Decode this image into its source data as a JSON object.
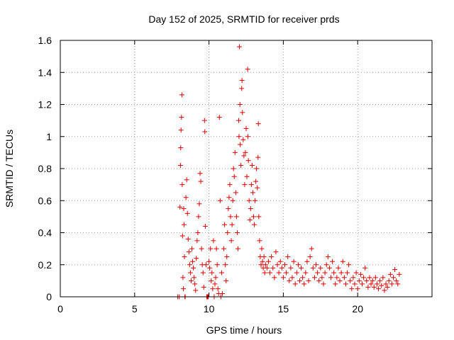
{
  "chart_data": {
    "type": "scatter",
    "title": "Day 152 of 2025, SRMTID for receiver prds",
    "xlabel": "GPS time / hours",
    "ylabel": "SRMTID / TECUs",
    "xlim": [
      0,
      25
    ],
    "ylim": [
      0,
      1.6
    ],
    "xticks": [
      "0",
      "5",
      "10",
      "15",
      "20"
    ],
    "yticks": [
      "0",
      "0.2",
      "0.4",
      "0.6",
      "0.8",
      "1",
      "1.2",
      "1.4",
      "1.6"
    ],
    "grid": true,
    "marker": "plus",
    "colors": {
      "series": "#e00000",
      "grid": "#a0a0a0",
      "axes": "#000000"
    },
    "series": [
      {
        "name": "SRMTID",
        "points": [
          [
            7.9,
            0.0
          ],
          [
            8.0,
            0.0
          ],
          [
            8.05,
            0.56
          ],
          [
            8.08,
            0.82
          ],
          [
            8.1,
            0.93
          ],
          [
            8.12,
            1.04
          ],
          [
            8.15,
            1.12
          ],
          [
            8.18,
            1.26
          ],
          [
            8.2,
            0.7
          ],
          [
            8.22,
            0.38
          ],
          [
            8.25,
            0.12
          ],
          [
            8.28,
            0.05
          ],
          [
            8.3,
            0.55
          ],
          [
            8.32,
            0.45
          ],
          [
            8.35,
            0.25
          ],
          [
            8.38,
            0.0
          ],
          [
            8.4,
            0.0
          ],
          [
            8.45,
            0.62
          ],
          [
            8.5,
            0.73
          ],
          [
            8.55,
            0.52
          ],
          [
            8.6,
            0.36
          ],
          [
            8.65,
            0.28
          ],
          [
            8.7,
            0.2
          ],
          [
            8.75,
            0.15
          ],
          [
            8.8,
            0.1
          ],
          [
            8.85,
            0.3
          ],
          [
            8.9,
            0.22
          ],
          [
            8.95,
            0.18
          ],
          [
            9.0,
            0.12
          ],
          [
            9.05,
            0.08
          ],
          [
            9.1,
            0.04
          ],
          [
            9.15,
            0.24
          ],
          [
            9.2,
            0.35
          ],
          [
            9.25,
            0.4
          ],
          [
            9.3,
            0.5
          ],
          [
            9.35,
            0.58
          ],
          [
            9.4,
            0.77
          ],
          [
            9.45,
            0.72
          ],
          [
            9.5,
            0.3
          ],
          [
            9.55,
            0.2
          ],
          [
            9.6,
            0.15
          ],
          [
            9.65,
            0.06
          ],
          [
            9.7,
            1.1
          ],
          [
            9.72,
            1.03
          ],
          [
            9.75,
            0.44
          ],
          [
            9.8,
            0.2
          ],
          [
            9.85,
            0.0
          ],
          [
            9.9,
            0.0
          ],
          [
            9.95,
            0.0
          ],
          [
            10.0,
            0.22
          ],
          [
            10.05,
            0.18
          ],
          [
            10.1,
            0.3
          ],
          [
            10.15,
            0.1
          ],
          [
            10.2,
            0.15
          ],
          [
            10.25,
            0.05
          ],
          [
            10.3,
            0.35
          ],
          [
            10.35,
            0.0
          ],
          [
            10.4,
            0.08
          ],
          [
            10.45,
            0.12
          ],
          [
            10.5,
            0.3
          ],
          [
            10.55,
            0.2
          ],
          [
            10.6,
            0.05
          ],
          [
            10.65,
            0.02
          ],
          [
            10.7,
            1.12
          ],
          [
            10.75,
            0.6
          ],
          [
            10.8,
            0.0
          ],
          [
            10.85,
            0.15
          ],
          [
            10.9,
            0.02
          ],
          [
            11.0,
            0.3
          ],
          [
            11.05,
            0.45
          ],
          [
            11.1,
            0.2
          ],
          [
            11.15,
            0.1
          ],
          [
            11.2,
            0.25
          ],
          [
            11.25,
            0.4
          ],
          [
            11.3,
            0.55
          ],
          [
            11.35,
            0.62
          ],
          [
            11.4,
            0.7
          ],
          [
            11.45,
            0.5
          ],
          [
            11.5,
            0.35
          ],
          [
            11.55,
            0.45
          ],
          [
            11.6,
            0.6
          ],
          [
            11.65,
            0.8
          ],
          [
            11.7,
            0.75
          ],
          [
            11.75,
            0.9
          ],
          [
            11.8,
            0.65
          ],
          [
            11.85,
            0.5
          ],
          [
            11.9,
            0.4
          ],
          [
            11.95,
            0.3
          ],
          [
            12.0,
            1.1
          ],
          [
            12.02,
            1.0
          ],
          [
            12.05,
            1.56
          ],
          [
            12.08,
            1.2
          ],
          [
            12.1,
            0.95
          ],
          [
            12.15,
            0.82
          ],
          [
            12.2,
            1.3
          ],
          [
            12.22,
            1.35
          ],
          [
            12.25,
            1.15
          ],
          [
            12.3,
            0.98
          ],
          [
            12.35,
            0.88
          ],
          [
            12.4,
            0.7
          ],
          [
            12.45,
            0.9
          ],
          [
            12.5,
            1.05
          ],
          [
            12.55,
            0.75
          ],
          [
            12.6,
            1.42
          ],
          [
            12.62,
            1.0
          ],
          [
            12.65,
            0.85
          ],
          [
            12.7,
            0.6
          ],
          [
            12.75,
            0.48
          ],
          [
            12.8,
            0.55
          ],
          [
            12.85,
            0.7
          ],
          [
            12.9,
            0.82
          ],
          [
            12.95,
            0.65
          ],
          [
            13.0,
            0.5
          ],
          [
            13.05,
            0.45
          ],
          [
            13.1,
            0.6
          ],
          [
            13.15,
            0.72
          ],
          [
            13.2,
            0.8
          ],
          [
            13.25,
            0.68
          ],
          [
            13.3,
            0.87
          ],
          [
            13.32,
            1.08
          ],
          [
            13.35,
            0.5
          ],
          [
            13.4,
            0.35
          ],
          [
            13.45,
            0.25
          ],
          [
            13.5,
            0.2
          ],
          [
            13.55,
            0.3
          ],
          [
            13.6,
            0.22
          ],
          [
            13.65,
            0.18
          ],
          [
            13.7,
            0.25
          ],
          [
            13.75,
            0.15
          ],
          [
            13.8,
            0.2
          ],
          [
            13.9,
            0.18
          ],
          [
            14.0,
            0.22
          ],
          [
            14.1,
            0.15
          ],
          [
            14.2,
            0.25
          ],
          [
            14.3,
            0.18
          ],
          [
            14.4,
            0.12
          ],
          [
            14.5,
            0.28
          ],
          [
            14.6,
            0.2
          ],
          [
            14.7,
            0.15
          ],
          [
            14.8,
            0.22
          ],
          [
            14.9,
            0.18
          ],
          [
            15.0,
            0.12
          ],
          [
            15.1,
            0.2
          ],
          [
            15.2,
            0.15
          ],
          [
            15.3,
            0.25
          ],
          [
            15.4,
            0.1
          ],
          [
            15.5,
            0.18
          ],
          [
            15.6,
            0.12
          ],
          [
            15.7,
            0.22
          ],
          [
            15.8,
            0.08
          ],
          [
            15.9,
            0.15
          ],
          [
            16.0,
            0.2
          ],
          [
            16.1,
            0.1
          ],
          [
            16.2,
            0.18
          ],
          [
            16.3,
            0.12
          ],
          [
            16.4,
            0.08
          ],
          [
            16.5,
            0.15
          ],
          [
            16.6,
            0.22
          ],
          [
            16.7,
            0.1
          ],
          [
            16.8,
            0.25
          ],
          [
            16.9,
            0.3
          ],
          [
            17.0,
            0.18
          ],
          [
            17.1,
            0.12
          ],
          [
            17.2,
            0.2
          ],
          [
            17.3,
            0.15
          ],
          [
            17.4,
            0.1
          ],
          [
            17.5,
            0.18
          ],
          [
            17.6,
            0.12
          ],
          [
            17.7,
            0.08
          ],
          [
            17.8,
            0.15
          ],
          [
            17.9,
            0.2
          ],
          [
            18.0,
            0.25
          ],
          [
            18.1,
            0.18
          ],
          [
            18.2,
            0.12
          ],
          [
            18.3,
            0.22
          ],
          [
            18.4,
            0.15
          ],
          [
            18.5,
            0.08
          ],
          [
            18.6,
            0.12
          ],
          [
            18.7,
            0.18
          ],
          [
            18.8,
            0.1
          ],
          [
            18.9,
            0.15
          ],
          [
            19.0,
            0.22
          ],
          [
            19.1,
            0.12
          ],
          [
            19.2,
            0.08
          ],
          [
            19.3,
            0.15
          ],
          [
            19.4,
            0.2
          ],
          [
            19.5,
            0.1
          ],
          [
            19.6,
            0.05
          ],
          [
            19.7,
            0.12
          ],
          [
            19.8,
            0.08
          ],
          [
            19.9,
            0.15
          ],
          [
            20.0,
            0.05
          ],
          [
            20.1,
            0.1
          ],
          [
            20.2,
            0.14
          ],
          [
            20.3,
            0.08
          ],
          [
            20.4,
            0.12
          ],
          [
            20.5,
            0.18
          ],
          [
            20.6,
            0.1
          ],
          [
            20.7,
            0.06
          ],
          [
            20.8,
            0.12
          ],
          [
            20.9,
            0.08
          ],
          [
            21.0,
            0.1
          ],
          [
            21.1,
            0.06
          ],
          [
            21.2,
            0.12
          ],
          [
            21.3,
            0.08
          ],
          [
            21.4,
            0.05
          ],
          [
            21.5,
            0.1
          ],
          [
            21.6,
            0.07
          ],
          [
            21.7,
            0.12
          ],
          [
            21.8,
            0.04
          ],
          [
            21.9,
            0.08
          ],
          [
            22.0,
            0.06
          ],
          [
            22.1,
            0.1
          ],
          [
            22.2,
            0.14
          ],
          [
            22.3,
            0.08
          ],
          [
            22.4,
            0.12
          ],
          [
            22.5,
            0.17
          ],
          [
            22.6,
            0.1
          ],
          [
            22.7,
            0.08
          ],
          [
            22.8,
            0.14
          ]
        ]
      }
    ]
  }
}
